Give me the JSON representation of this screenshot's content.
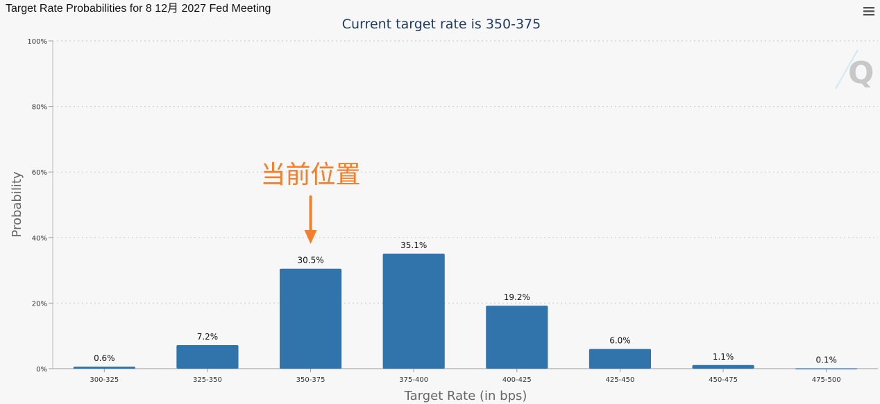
{
  "app": {
    "title": "Target Rate Probabilities for 8 12月 2027 Fed Meeting"
  },
  "toolbar": {
    "menu_icon": "hamburger-menu-icon"
  },
  "watermark": {
    "icon": "q-logo-icon"
  },
  "annotation": {
    "text": "当前位置",
    "target_category": "350-375",
    "color": "#f47f2a"
  },
  "colors": {
    "bar": "#3173ab",
    "grid": "#d0d0d0",
    "axis_text": "#555555",
    "subtitle": "#1f3b63"
  },
  "chart_data": {
    "type": "bar",
    "title": "Target Rate Probabilities for 8 12月 2027 Fed Meeting",
    "subtitle": "Current target rate is 350-375",
    "xlabel": "Target Rate (in bps)",
    "ylabel": "Probability",
    "categories": [
      "300-325",
      "325-350",
      "350-375",
      "375-400",
      "400-425",
      "425-450",
      "450-475",
      "475-500"
    ],
    "values": [
      0.6,
      7.2,
      30.5,
      35.1,
      19.2,
      6.0,
      1.1,
      0.1
    ],
    "value_labels": [
      "0.6%",
      "7.2%",
      "30.5%",
      "35.1%",
      "19.2%",
      "6.0%",
      "1.1%",
      "0.1%"
    ],
    "ylim": [
      0,
      100
    ],
    "yticks": [
      0,
      20,
      40,
      60,
      80,
      100
    ],
    "ytick_labels": [
      "0%",
      "20%",
      "40%",
      "60%",
      "80%",
      "100%"
    ],
    "grid": true,
    "legend": "none"
  }
}
